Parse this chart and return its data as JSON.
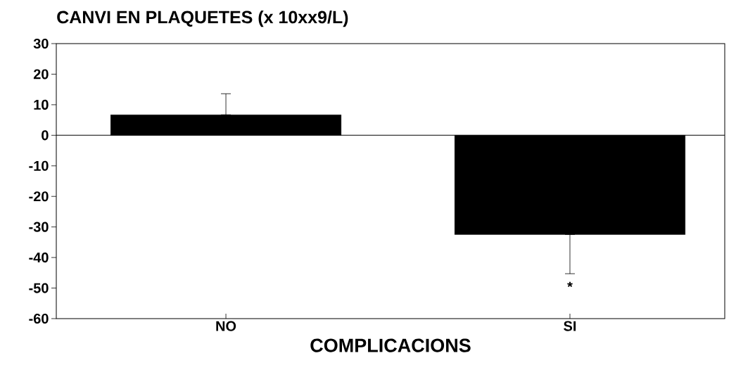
{
  "chart_data": {
    "type": "bar",
    "title": "CANVI EN PLAQUETES (x 10xx9/L)",
    "xlabel": "COMPLICACIONS",
    "categories": [
      "NO",
      "SI"
    ],
    "values": [
      6.7,
      -32.5
    ],
    "errors": [
      [
        6.7,
        13.6
      ],
      [
        -45.3,
        -32.5
      ]
    ],
    "color": "#000000",
    "ylim": [
      -60,
      30
    ],
    "yticks": [
      -60,
      -50,
      -40,
      -30,
      -20,
      -10,
      0,
      10,
      20,
      30
    ],
    "ref_lines": [
      {
        "axis": "y",
        "value": 0
      }
    ],
    "annotations": [
      "*"
    ],
    "grid": false
  }
}
